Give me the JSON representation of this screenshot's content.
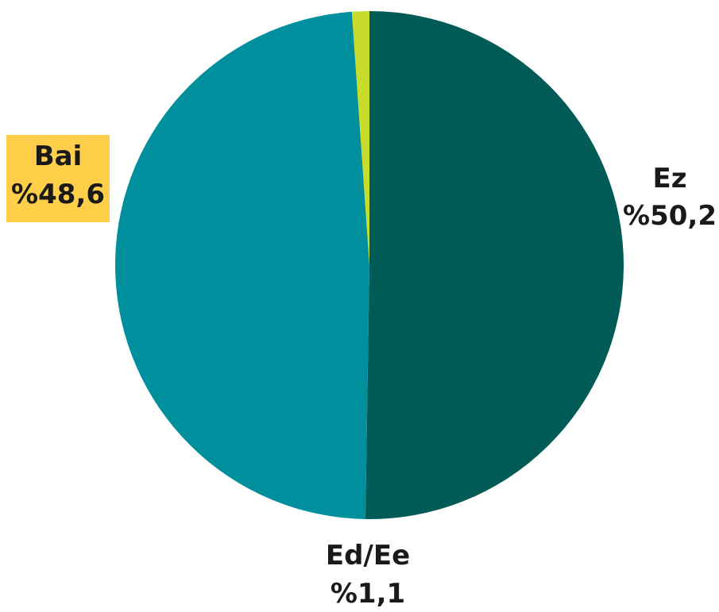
{
  "chart_data": {
    "type": "pie",
    "categories": [
      "Ez",
      "Bai",
      "Ed/Ee"
    ],
    "values": [
      50.2,
      48.6,
      1.1
    ],
    "value_labels": [
      "%50,2",
      "%48,6",
      "%1,1"
    ],
    "colors": [
      "#005b57",
      "#00909d",
      "#c8dc2b"
    ],
    "highlight": {
      "category": "Bai",
      "color": "#ffcf4a"
    },
    "start_angle": "12 o'clock",
    "direction": "clockwise",
    "legend": "none"
  }
}
